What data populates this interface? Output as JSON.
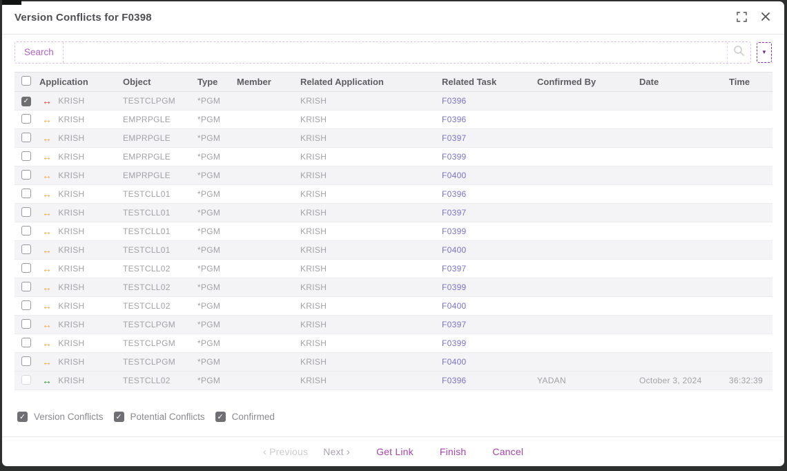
{
  "dialog": {
    "title": "Version Conflicts for F0398"
  },
  "search": {
    "label": "Search",
    "value": ""
  },
  "table": {
    "columns": [
      "Application",
      "Object",
      "Type",
      "Member",
      "Related Application",
      "Related Task",
      "Confirmed By",
      "Date",
      "Time"
    ],
    "rows": [
      {
        "checked": true,
        "disabled": false,
        "status": "version_conflict",
        "application": "KRISH",
        "object": "TESTCLPGM",
        "type": "*PGM",
        "member": "",
        "related_application": "KRISH",
        "related_task": "F0396",
        "confirmed_by": "",
        "date": "",
        "time": ""
      },
      {
        "checked": false,
        "disabled": false,
        "status": "potential_conflict",
        "application": "KRISH",
        "object": "EMPRPGLE",
        "type": "*PGM",
        "member": "",
        "related_application": "KRISH",
        "related_task": "F0396",
        "confirmed_by": "",
        "date": "",
        "time": ""
      },
      {
        "checked": false,
        "disabled": false,
        "status": "potential_conflict",
        "application": "KRISH",
        "object": "EMPRPGLE",
        "type": "*PGM",
        "member": "",
        "related_application": "KRISH",
        "related_task": "F0397",
        "confirmed_by": "",
        "date": "",
        "time": ""
      },
      {
        "checked": false,
        "disabled": false,
        "status": "potential_conflict",
        "application": "KRISH",
        "object": "EMPRPGLE",
        "type": "*PGM",
        "member": "",
        "related_application": "KRISH",
        "related_task": "F0399",
        "confirmed_by": "",
        "date": "",
        "time": ""
      },
      {
        "checked": false,
        "disabled": false,
        "status": "potential_conflict",
        "application": "KRISH",
        "object": "EMPRPGLE",
        "type": "*PGM",
        "member": "",
        "related_application": "KRISH",
        "related_task": "F0400",
        "confirmed_by": "",
        "date": "",
        "time": ""
      },
      {
        "checked": false,
        "disabled": false,
        "status": "potential_conflict",
        "application": "KRISH",
        "object": "TESTCLL01",
        "type": "*PGM",
        "member": "",
        "related_application": "KRISH",
        "related_task": "F0396",
        "confirmed_by": "",
        "date": "",
        "time": ""
      },
      {
        "checked": false,
        "disabled": false,
        "status": "potential_conflict",
        "application": "KRISH",
        "object": "TESTCLL01",
        "type": "*PGM",
        "member": "",
        "related_application": "KRISH",
        "related_task": "F0397",
        "confirmed_by": "",
        "date": "",
        "time": ""
      },
      {
        "checked": false,
        "disabled": false,
        "status": "potential_conflict",
        "application": "KRISH",
        "object": "TESTCLL01",
        "type": "*PGM",
        "member": "",
        "related_application": "KRISH",
        "related_task": "F0399",
        "confirmed_by": "",
        "date": "",
        "time": ""
      },
      {
        "checked": false,
        "disabled": false,
        "status": "potential_conflict",
        "application": "KRISH",
        "object": "TESTCLL01",
        "type": "*PGM",
        "member": "",
        "related_application": "KRISH",
        "related_task": "F0400",
        "confirmed_by": "",
        "date": "",
        "time": ""
      },
      {
        "checked": false,
        "disabled": false,
        "status": "potential_conflict",
        "application": "KRISH",
        "object": "TESTCLL02",
        "type": "*PGM",
        "member": "",
        "related_application": "KRISH",
        "related_task": "F0397",
        "confirmed_by": "",
        "date": "",
        "time": ""
      },
      {
        "checked": false,
        "disabled": false,
        "status": "potential_conflict",
        "application": "KRISH",
        "object": "TESTCLL02",
        "type": "*PGM",
        "member": "",
        "related_application": "KRISH",
        "related_task": "F0399",
        "confirmed_by": "",
        "date": "",
        "time": ""
      },
      {
        "checked": false,
        "disabled": false,
        "status": "potential_conflict",
        "application": "KRISH",
        "object": "TESTCLL02",
        "type": "*PGM",
        "member": "",
        "related_application": "KRISH",
        "related_task": "F0400",
        "confirmed_by": "",
        "date": "",
        "time": ""
      },
      {
        "checked": false,
        "disabled": false,
        "status": "potential_conflict",
        "application": "KRISH",
        "object": "TESTCLPGM",
        "type": "*PGM",
        "member": "",
        "related_application": "KRISH",
        "related_task": "F0397",
        "confirmed_by": "",
        "date": "",
        "time": ""
      },
      {
        "checked": false,
        "disabled": false,
        "status": "potential_conflict",
        "application": "KRISH",
        "object": "TESTCLPGM",
        "type": "*PGM",
        "member": "",
        "related_application": "KRISH",
        "related_task": "F0399",
        "confirmed_by": "",
        "date": "",
        "time": ""
      },
      {
        "checked": false,
        "disabled": false,
        "status": "potential_conflict",
        "application": "KRISH",
        "object": "TESTCLPGM",
        "type": "*PGM",
        "member": "",
        "related_application": "KRISH",
        "related_task": "F0400",
        "confirmed_by": "",
        "date": "",
        "time": ""
      },
      {
        "checked": false,
        "disabled": true,
        "status": "confirmed",
        "application": "KRISH",
        "object": "TESTCLL02",
        "type": "*PGM",
        "member": "",
        "related_application": "KRISH",
        "related_task": "F0396",
        "confirmed_by": "YADAN",
        "date": "October 3, 2024",
        "time": "36:32:39"
      }
    ]
  },
  "filters": [
    {
      "label": "Version Conflicts",
      "checked": true
    },
    {
      "label": "Potential Conflicts",
      "checked": true
    },
    {
      "label": "Confirmed",
      "checked": true
    }
  ],
  "footer": {
    "previous": "Previous",
    "next": "Next",
    "get_link": "Get Link",
    "finish": "Finish",
    "cancel": "Cancel"
  },
  "icons": {
    "conflict_arrow_glyph": "↔",
    "check_glyph": "✓",
    "dropdown_glyph": "▼",
    "chevron_left": "‹",
    "chevron_right": "›"
  },
  "colors": {
    "accent_magenta": "#a944ad",
    "link_purple": "#7a71c9",
    "version_conflict_red": "#e23434",
    "potential_conflict_orange": "#f2a53a",
    "confirmed_green": "#229a27",
    "search_purple": "#b263c9"
  }
}
